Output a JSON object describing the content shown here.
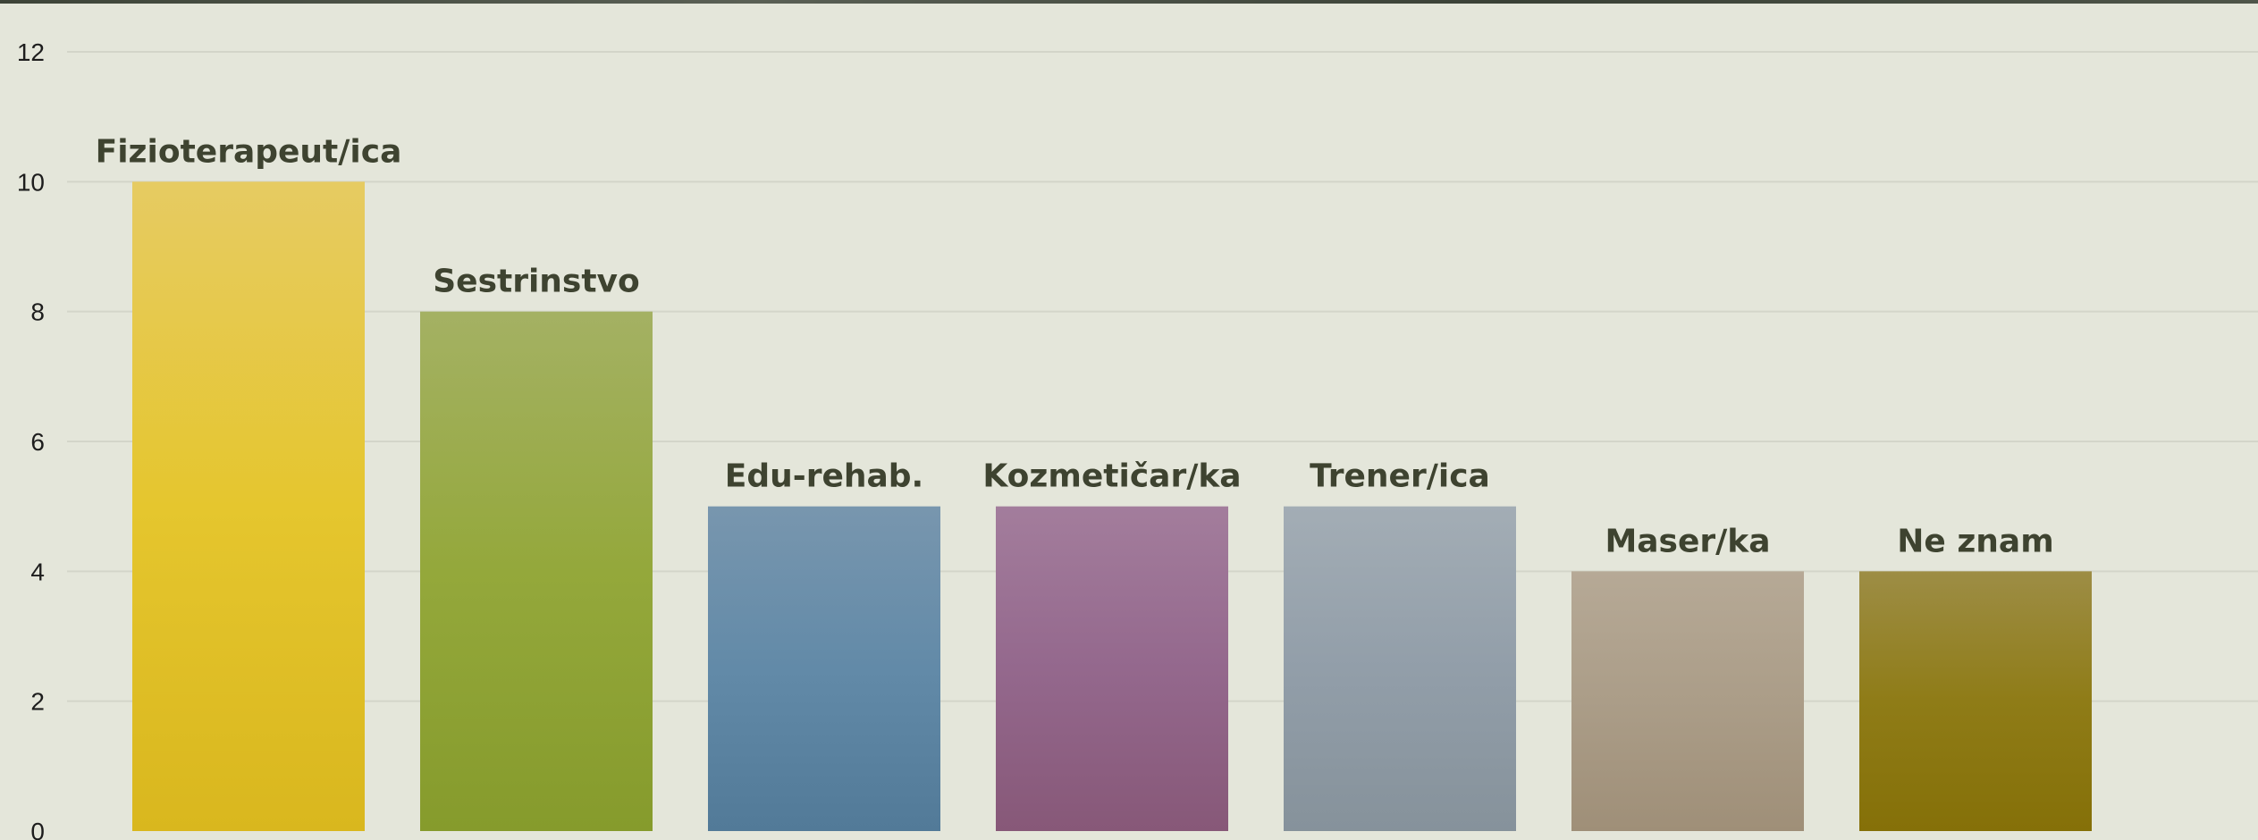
{
  "chart_data": {
    "type": "bar",
    "categories": [
      "Fizioterapeut/ica",
      "Sestrinstvo",
      "Edu-rehab.",
      "Kozmetičar/ka",
      "Trener/ica",
      "Maser/ka",
      "Ne znam"
    ],
    "values": [
      10,
      8,
      5,
      5,
      5,
      4,
      4
    ],
    "title": "",
    "xlabel": "",
    "ylabel": "",
    "ylim": [
      0,
      12
    ],
    "yticks": [
      0,
      2,
      4,
      6,
      8,
      10,
      12
    ],
    "grid": true,
    "legend": "none",
    "data_labels": "category names above bars",
    "colors": [
      [
        "#e6cb62",
        "#e5c62e",
        "#d9b71e"
      ],
      [
        "#a4b163",
        "#94a83b",
        "#869b2c"
      ],
      [
        "#7896ae",
        "#628aa8",
        "#527a98"
      ],
      [
        "#a37d9c",
        "#94688d",
        "#875878"
      ],
      [
        "#a3adb5",
        "#929ea9",
        "#86929b"
      ],
      [
        "#b6a996",
        "#ab9d88",
        "#9f8f78"
      ],
      [
        "#9d8d45",
        "#8f7c17",
        "#857008"
      ]
    ]
  }
}
